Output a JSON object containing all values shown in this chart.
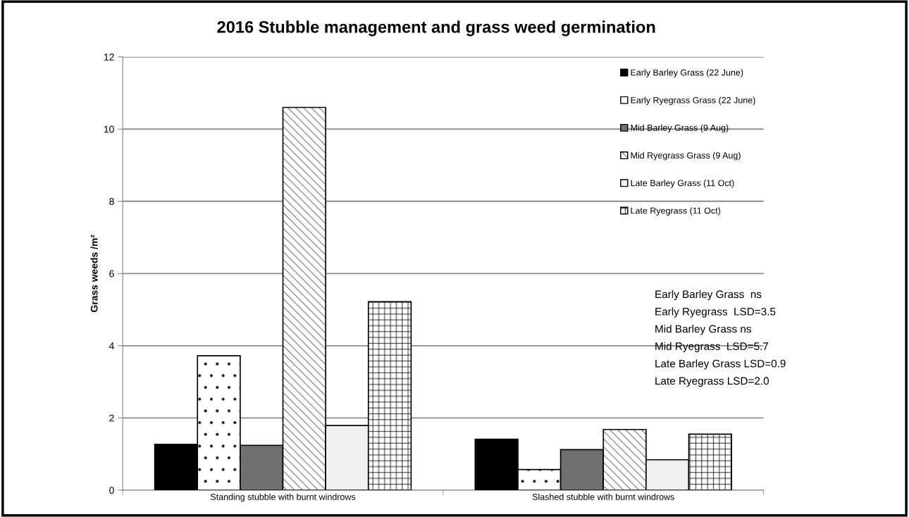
{
  "chart_data": {
    "type": "bar",
    "title": "2016 Stubble management and grass weed germination",
    "ylabel": "Grass weeds /m²",
    "categories": [
      "Standing stubble with burnt windrows",
      "Slashed stubble with burnt windrows"
    ],
    "series": [
      {
        "name": "Early Barley Grass (22 June)",
        "color": "#000000",
        "values": [
          1.27,
          1.41
        ]
      },
      {
        "name": "Early Ryegrass Grass (22 June)",
        "color": "#000000",
        "values": [
          3.72,
          0.57
        ]
      },
      {
        "name": "Mid Barley Grass (9 Aug)",
        "color": "#707070",
        "values": [
          1.24,
          1.12
        ]
      },
      {
        "name": "Mid Ryegrass Grass (9 Aug)",
        "color": "#000000",
        "values": [
          10.6,
          1.68
        ]
      },
      {
        "name": "Late Barley Grass (11 Oct)",
        "color": "#f0f0f0",
        "values": [
          1.79,
          0.84
        ]
      },
      {
        "name": "Late Ryegrass (11 Oct)",
        "color": "#000000",
        "values": [
          5.22,
          1.55
        ]
      }
    ],
    "ylim": [
      0,
      12
    ],
    "yticks": [
      0,
      2,
      4,
      6,
      8,
      10,
      12
    ],
    "grid": "y",
    "legend": "top right",
    "annotations": [
      "Early Barley Grass  ns",
      "Early Ryegrass  LSD=3.5",
      "Mid Barley Grass ns",
      "Mid Ryegrass  LSD=5.7",
      "Late Barley Grass LSD=0.9",
      "Late Ryegrass LSD=2.0"
    ]
  }
}
